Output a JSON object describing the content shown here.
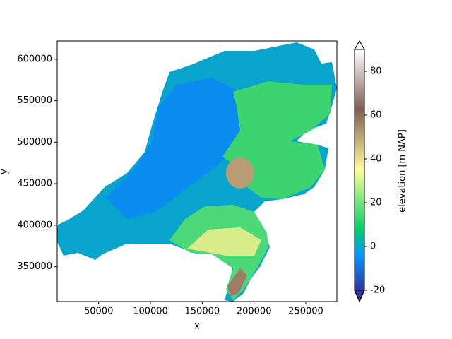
{
  "chart_data": {
    "type": "map",
    "xlabel": "x",
    "ylabel": "y",
    "xlim": [
      10000,
      280000
    ],
    "xticks": [
      50000,
      100000,
      150000,
      200000,
      250000
    ],
    "ylim": [
      308000,
      622000
    ],
    "yticks": [
      350000,
      400000,
      450000,
      500000,
      550000,
      600000
    ],
    "colorbar": {
      "label": "elevation [m NAP]",
      "lim": [
        -20,
        90
      ],
      "ticks": [
        -20,
        0,
        20,
        40,
        60,
        80
      ]
    }
  }
}
